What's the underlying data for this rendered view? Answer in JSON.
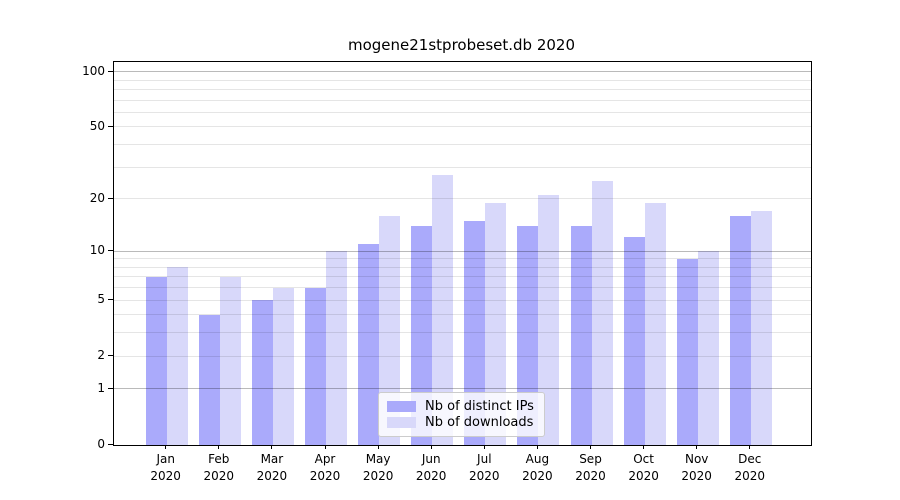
{
  "chart_data": {
    "type": "bar",
    "title": "mogene21stprobeset.db 2020",
    "categories": [
      "Jan",
      "Feb",
      "Mar",
      "Apr",
      "May",
      "Jun",
      "Jul",
      "Aug",
      "Sep",
      "Oct",
      "Nov",
      "Dec"
    ],
    "x_year_label": "2020",
    "series": [
      {
        "name": "Nb of distinct IPs",
        "color": "#aaaafb",
        "values": [
          7,
          4,
          5,
          6,
          11,
          14,
          15,
          14,
          14,
          12,
          9,
          16
        ]
      },
      {
        "name": "Nb of downloads",
        "color": "#d8d8fa",
        "values": [
          8,
          7,
          6,
          10,
          16,
          27,
          19,
          21,
          25,
          19,
          10,
          17
        ]
      }
    ],
    "xlabel": "",
    "ylabel": "",
    "y_axis": {
      "scale": "log1p",
      "ylim": [
        0,
        113
      ],
      "tick_labels": [
        0,
        1,
        2,
        5,
        10,
        20,
        50,
        100
      ],
      "major_gridlines": [
        1,
        10,
        100
      ],
      "minor_gridlines": [
        2,
        3,
        4,
        5,
        6,
        7,
        8,
        9,
        20,
        30,
        40,
        50,
        60,
        70,
        80,
        90
      ]
    },
    "grid": true,
    "legend_position": "lower-center"
  },
  "colors": {
    "bar_distinct_ips": "#aaaafb",
    "bar_downloads": "#d8d8fa",
    "major_grid": "#b4b4b4",
    "minor_grid": "#e6e6e6",
    "axis": "#000000",
    "legend_border": "#cccccc"
  }
}
